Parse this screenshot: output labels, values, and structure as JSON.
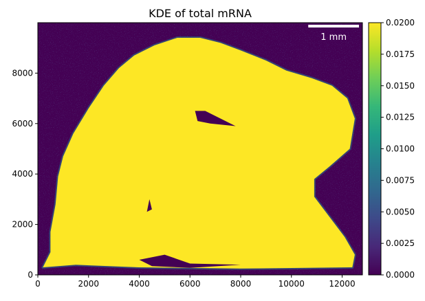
{
  "chart_data": {
    "type": "heatmap",
    "title": "KDE of total mRNA",
    "xlabel": "",
    "ylabel": "",
    "xlim": [
      0,
      12800
    ],
    "ylim": [
      0,
      10000
    ],
    "xticks": [
      0,
      2000,
      4000,
      6000,
      8000,
      10000,
      12000
    ],
    "yticks": [
      0,
      2000,
      4000,
      6000,
      8000
    ],
    "colorbar": {
      "min": 0.0,
      "max": 0.02,
      "ticks": [
        "0.0000",
        "0.0025",
        "0.0050",
        "0.0075",
        "0.0100",
        "0.0125",
        "0.0150",
        "0.0175",
        "0.0200"
      ],
      "colormap": "viridis",
      "colors": [
        "#440154",
        "#482878",
        "#3e4989",
        "#31688e",
        "#26828e",
        "#1f9e89",
        "#35b779",
        "#6ece58",
        "#b5de2b",
        "#fde725"
      ]
    },
    "scale_bar": {
      "label": "1 mm",
      "length": 2000,
      "color": "#ffffff"
    },
    "background_color": "#440154",
    "tissue_color": "#fde725",
    "tissue_outline": [
      [
        200,
        300
      ],
      [
        500,
        900
      ],
      [
        500,
        1700
      ],
      [
        700,
        2800
      ],
      [
        800,
        3900
      ],
      [
        1000,
        4700
      ],
      [
        1400,
        5600
      ],
      [
        2000,
        6600
      ],
      [
        2600,
        7500
      ],
      [
        3200,
        8200
      ],
      [
        3800,
        8700
      ],
      [
        4600,
        9100
      ],
      [
        5500,
        9400
      ],
      [
        6400,
        9400
      ],
      [
        7200,
        9200
      ],
      [
        8000,
        8900
      ],
      [
        9000,
        8500
      ],
      [
        9800,
        8100
      ],
      [
        10800,
        7800
      ],
      [
        11600,
        7500
      ],
      [
        12200,
        7000
      ],
      [
        12500,
        6200
      ],
      [
        12300,
        5000
      ],
      [
        11500,
        4300
      ],
      [
        10900,
        3800
      ],
      [
        10900,
        3100
      ],
      [
        11500,
        2300
      ],
      [
        12100,
        1500
      ],
      [
        12500,
        800
      ],
      [
        12400,
        300
      ],
      [
        8000,
        250
      ],
      [
        4000,
        300
      ],
      [
        1500,
        400
      ]
    ],
    "holes": [
      [
        [
          6200,
          6500
        ],
        [
          6600,
          6500
        ],
        [
          7800,
          5900
        ],
        [
          6800,
          6000
        ],
        [
          6300,
          6100
        ]
      ],
      [
        [
          4300,
          2500
        ],
        [
          4400,
          3000
        ],
        [
          4500,
          2600
        ]
      ],
      [
        [
          4000,
          600
        ],
        [
          5000,
          800
        ],
        [
          6000,
          450
        ],
        [
          8000,
          400
        ],
        [
          6000,
          280
        ],
        [
          4500,
          350
        ]
      ]
    ]
  }
}
